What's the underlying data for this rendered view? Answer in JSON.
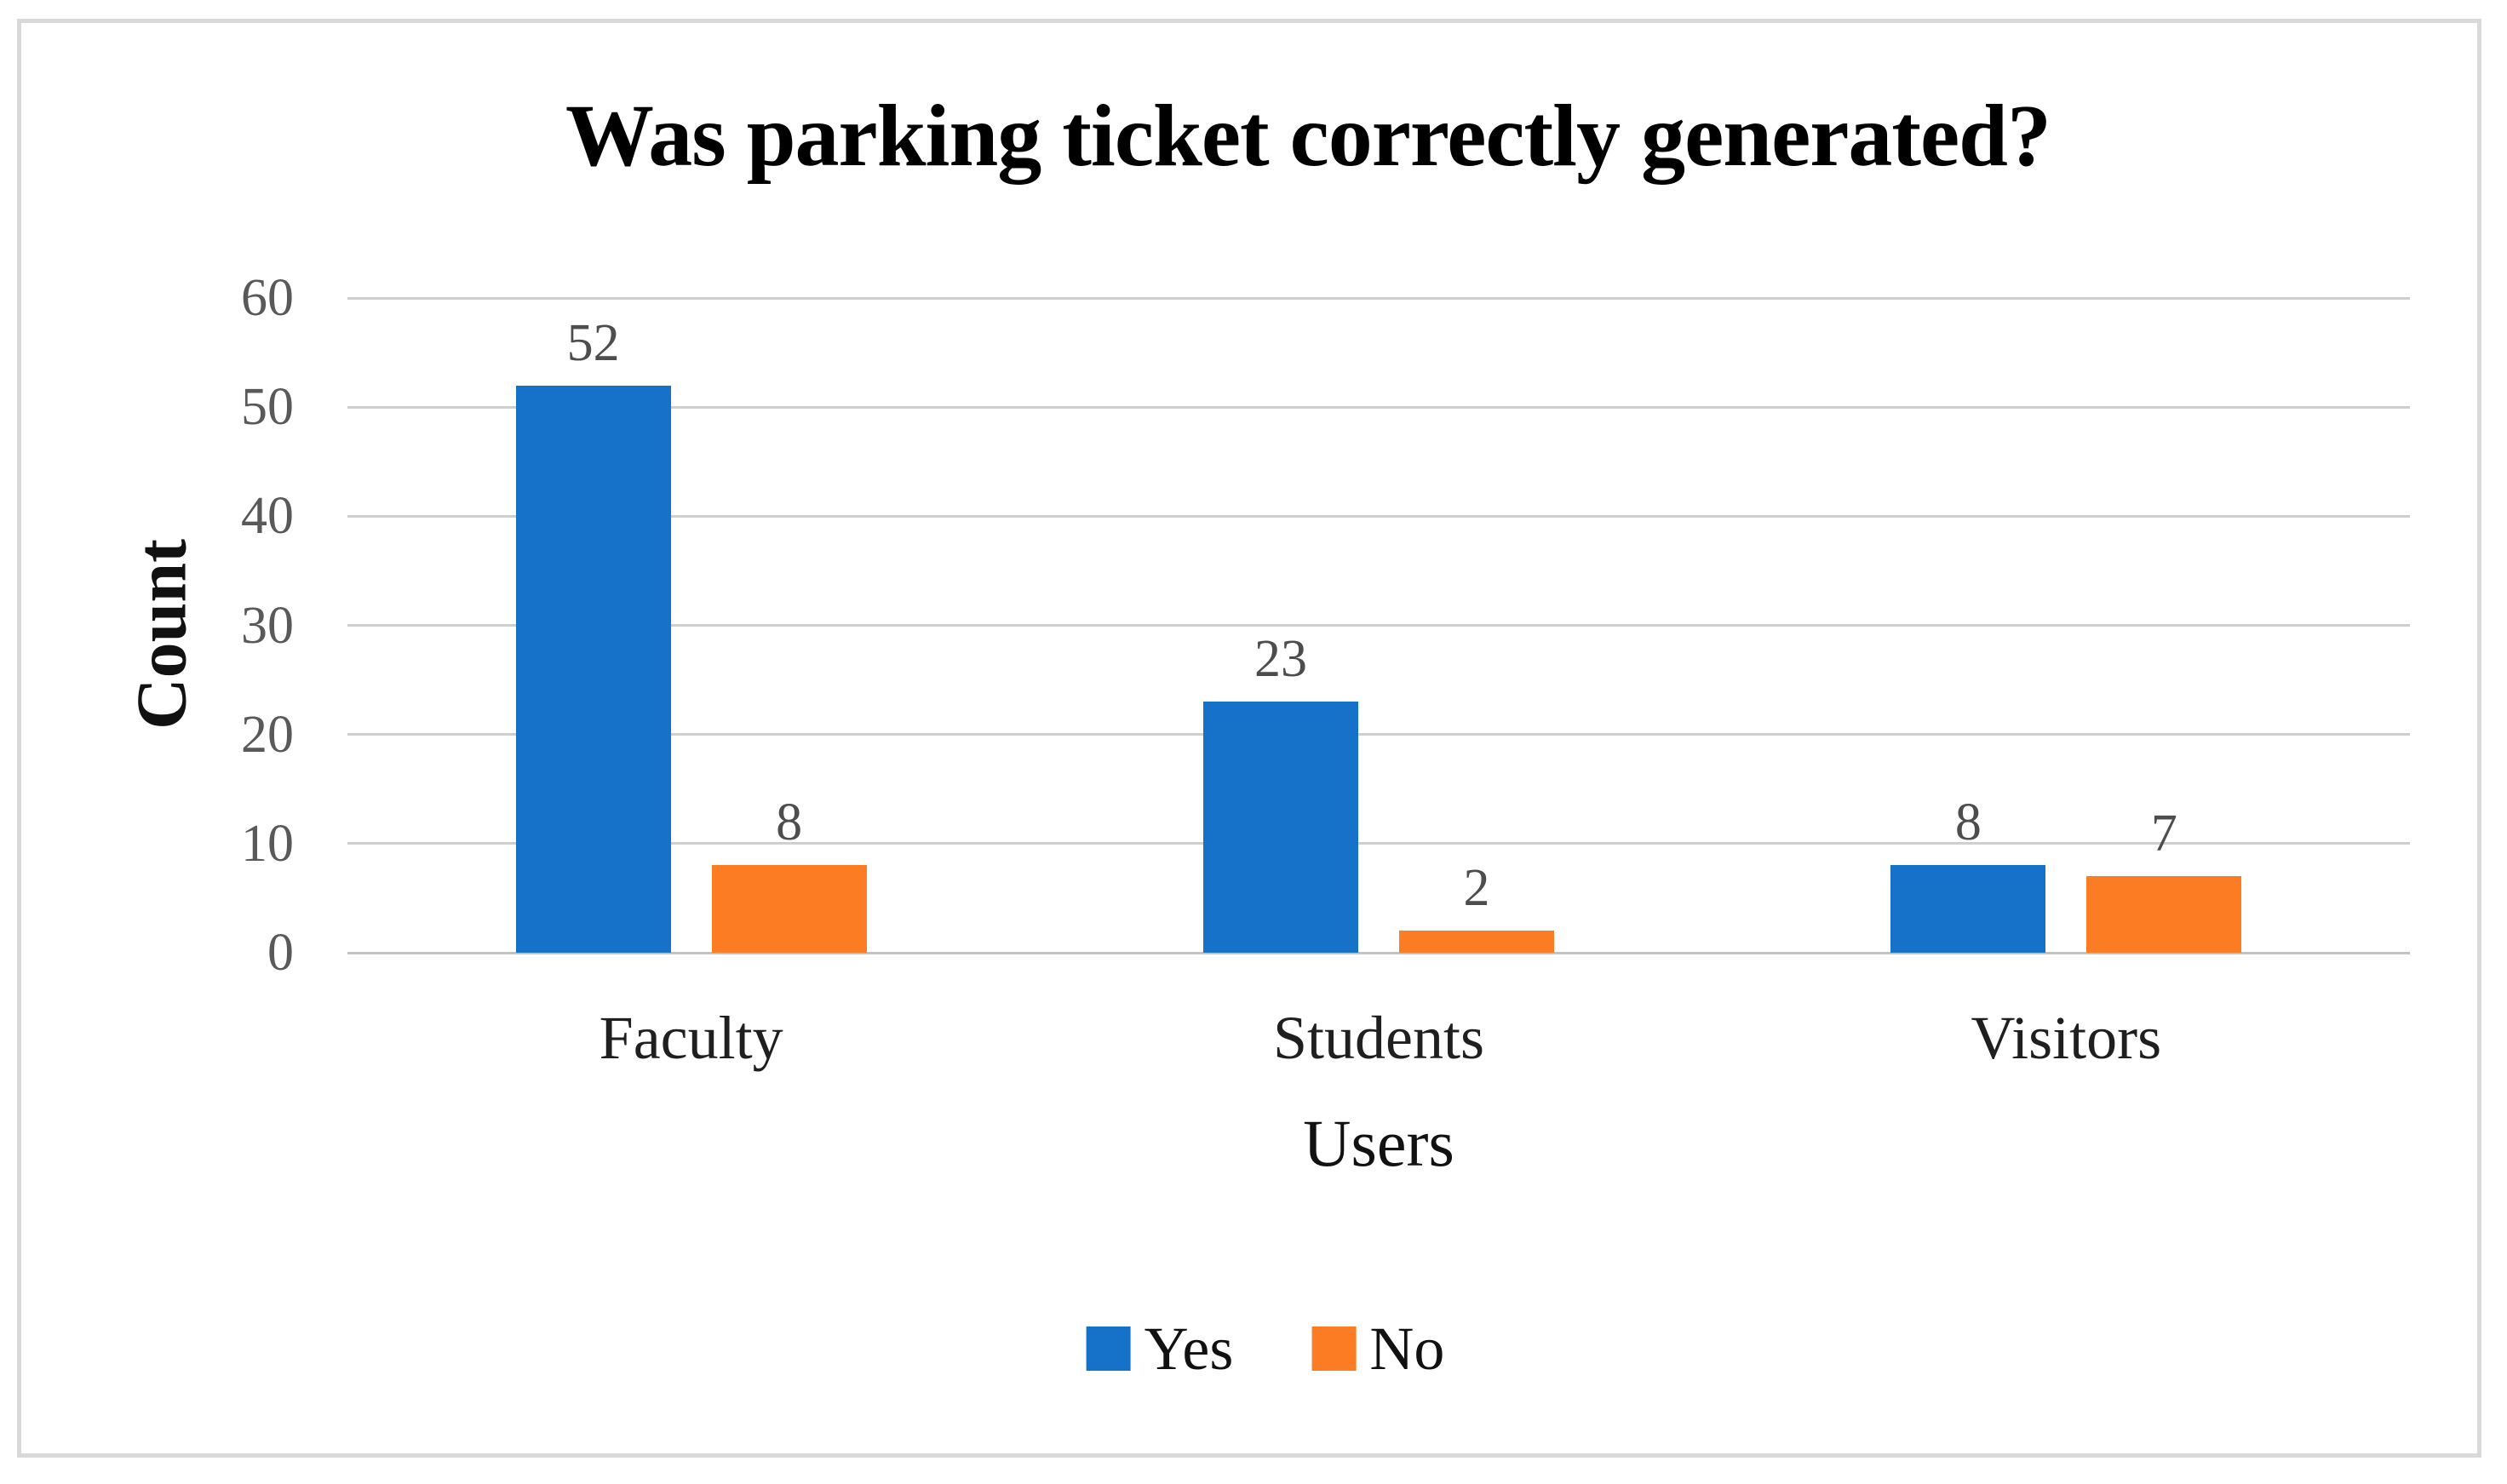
{
  "title": "Was parking ticket correctly generated?",
  "frame": {
    "border_color": "#D9D9D9"
  },
  "chart_data": {
    "type": "bar",
    "title": "Was parking ticket correctly generated?",
    "categories": [
      "Faculty",
      "Students",
      "Visitors"
    ],
    "series": [
      {
        "name": "Yes",
        "color": "#1572C8",
        "values": [
          52,
          23,
          8
        ]
      },
      {
        "name": "No",
        "color": "#FC7C24",
        "values": [
          8,
          2,
          7
        ]
      }
    ],
    "xlabel": "Users",
    "ylabel": "Count",
    "ylim": [
      0,
      60
    ],
    "yticks": [
      0,
      10,
      20,
      30,
      40,
      50,
      60
    ],
    "grid": true,
    "gridline_color": "#CFCFCF",
    "data_labels": true,
    "legend_position": "bottom"
  }
}
